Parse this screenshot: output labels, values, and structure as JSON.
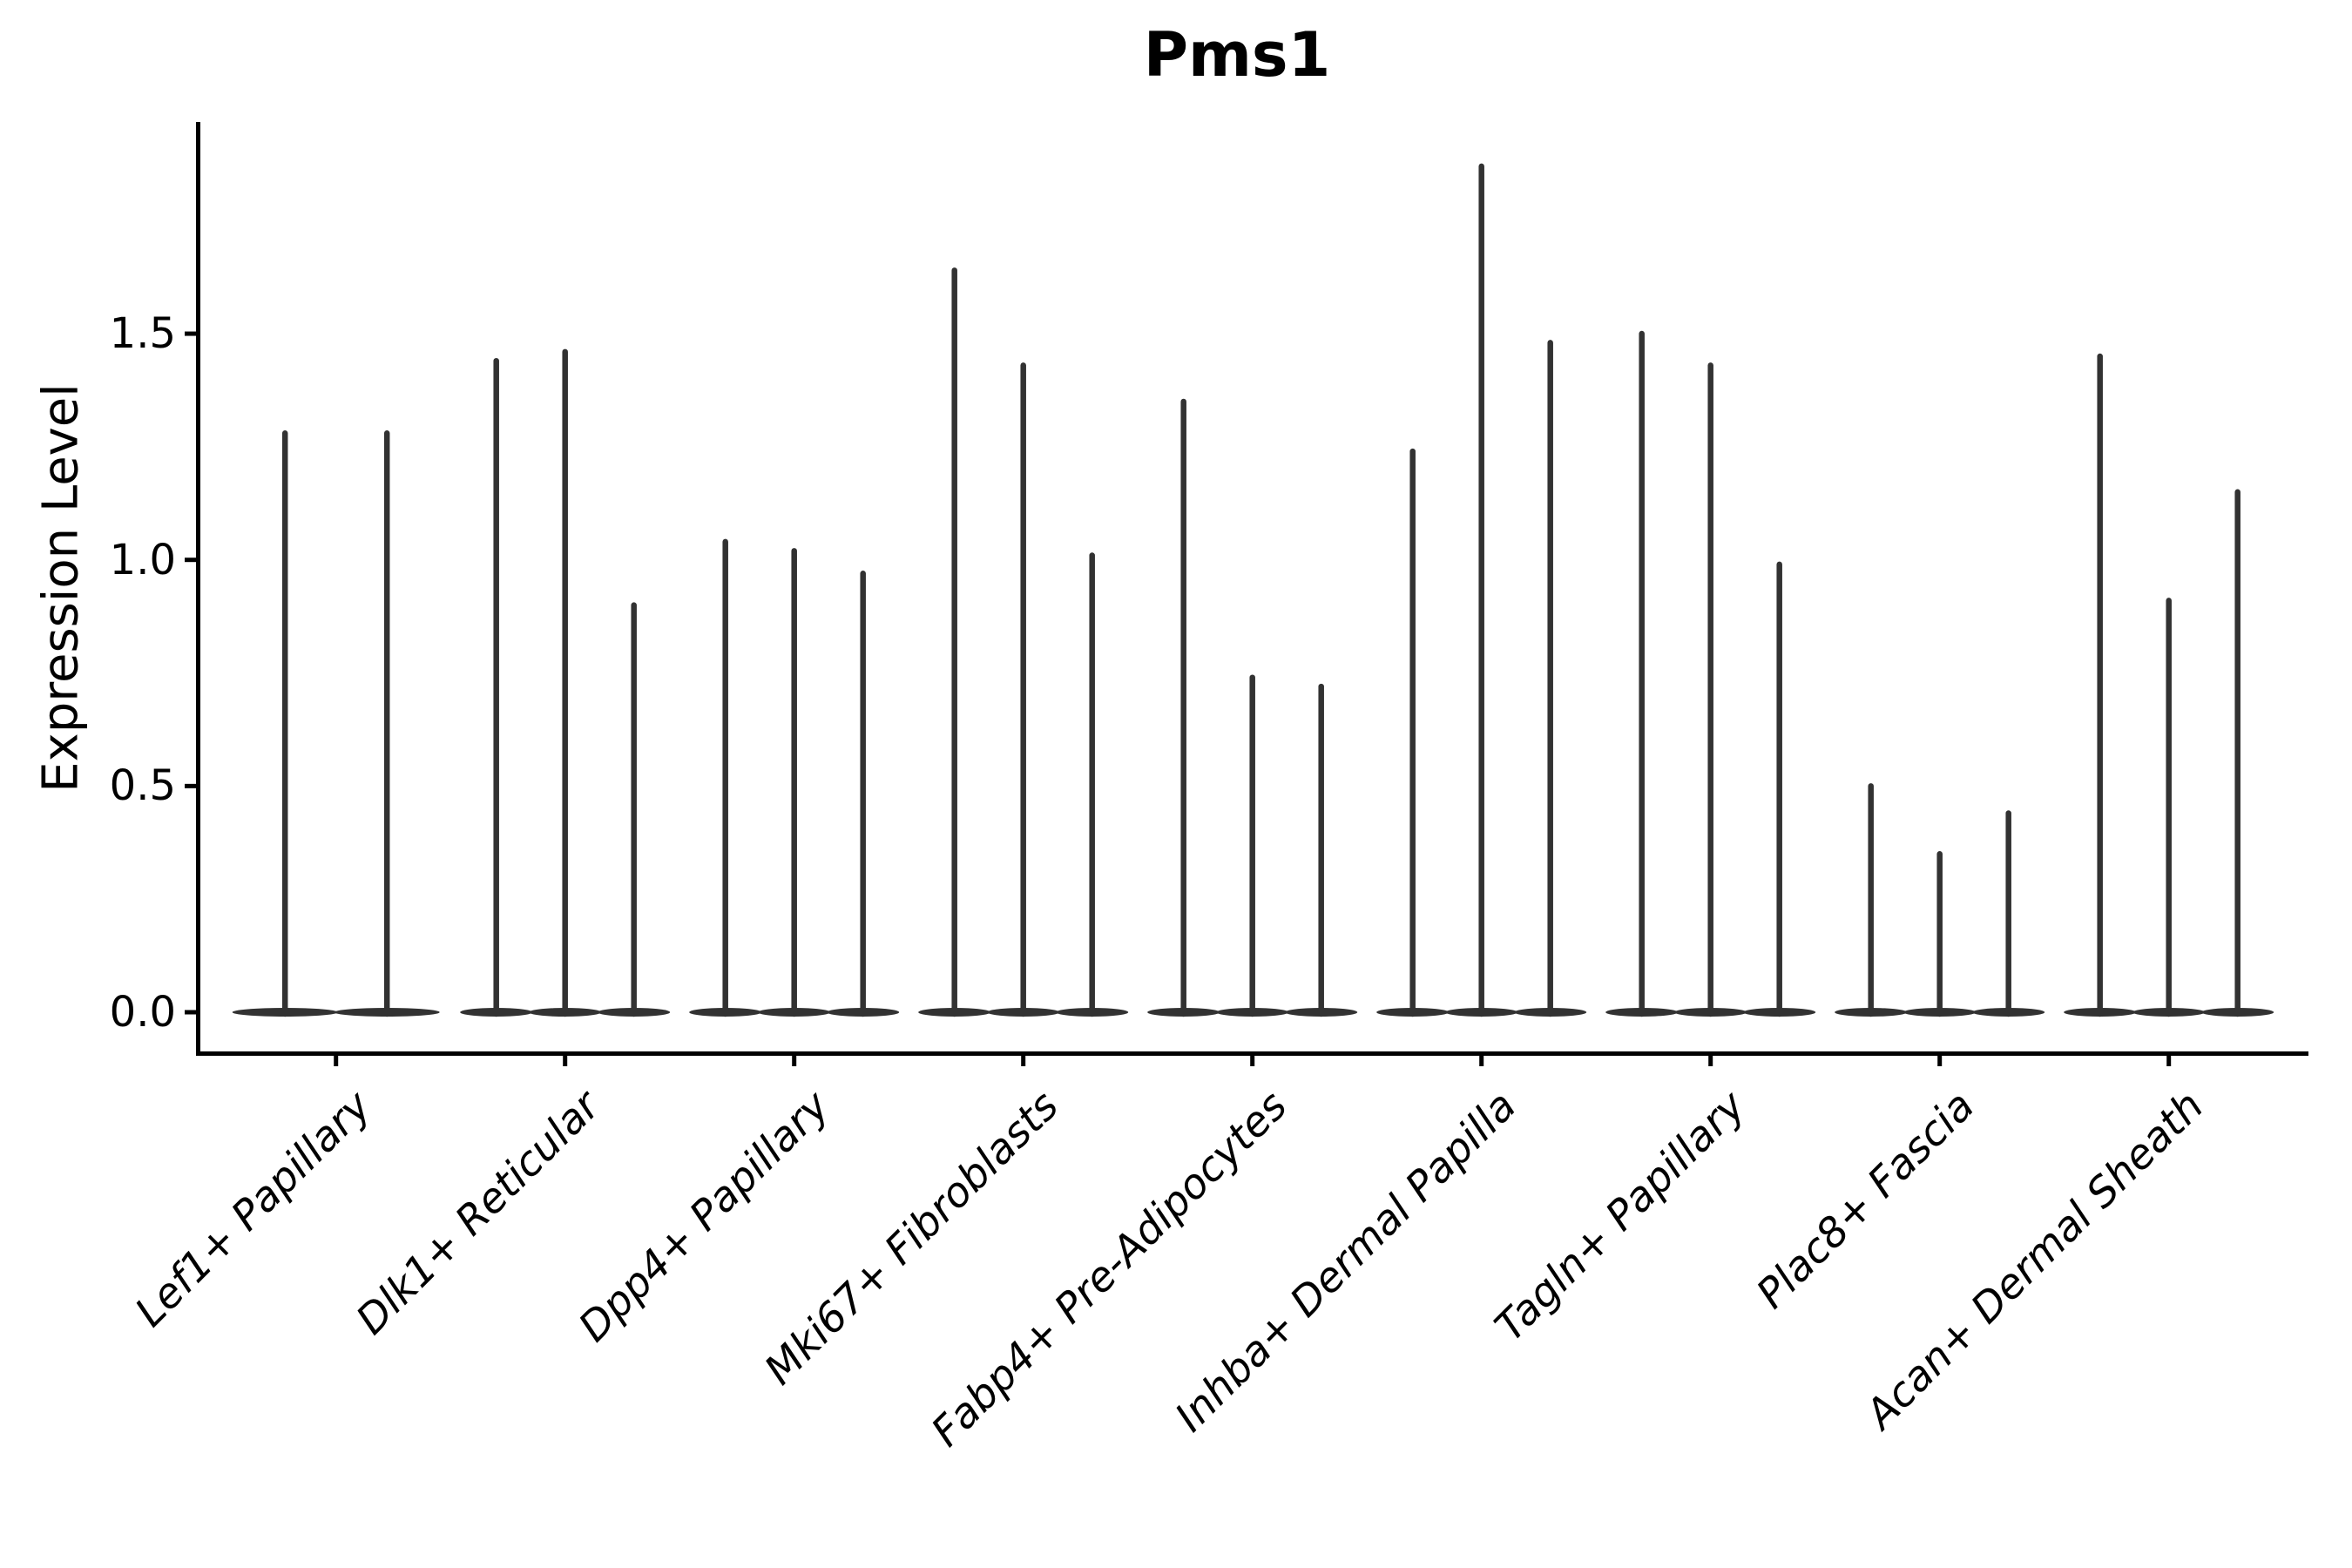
{
  "chart_data": {
    "type": "violin",
    "title": "Pms1",
    "xlabel": "",
    "ylabel": "Expression Level",
    "ylim": [
      0,
      1.97
    ],
    "ytick_labels": [
      "0.0",
      "0.5",
      "1.0",
      "1.5"
    ],
    "ytick_values": [
      0.0,
      0.5,
      1.0,
      1.5
    ],
    "grid": "off",
    "legend": "none",
    "violin_color": "#323232",
    "axis_color": "#000000",
    "description": "Very narrow violin plots (spikes) with flat bases at 0; peak value of each violin per category",
    "categories": [
      {
        "label": "Lef1+ Papillary",
        "peaks": [
          1.28,
          1.28
        ]
      },
      {
        "label": "Dlk1+ Reticular",
        "peaks": [
          1.44,
          1.46,
          0.9
        ]
      },
      {
        "label": "Dpp4+ Papillary",
        "peaks": [
          1.04,
          1.02,
          0.97
        ]
      },
      {
        "label": "Mki67+ Fibroblasts",
        "peaks": [
          1.64,
          1.43,
          1.01
        ]
      },
      {
        "label": "Fabp4+ Pre-Adipocytes",
        "peaks": [
          1.35,
          0.74,
          0.72
        ]
      },
      {
        "label": "Inhba+ Dermal Papilla",
        "peaks": [
          1.24,
          1.87,
          1.48
        ]
      },
      {
        "label": "Tagln+ Papillary",
        "peaks": [
          1.5,
          1.43,
          0.99
        ]
      },
      {
        "label": "Plac8+ Fascia",
        "peaks": [
          0.5,
          0.35,
          0.44
        ]
      },
      {
        "label": "Acan+ Dermal Sheath",
        "peaks": [
          1.45,
          0.91,
          1.15
        ]
      }
    ]
  }
}
